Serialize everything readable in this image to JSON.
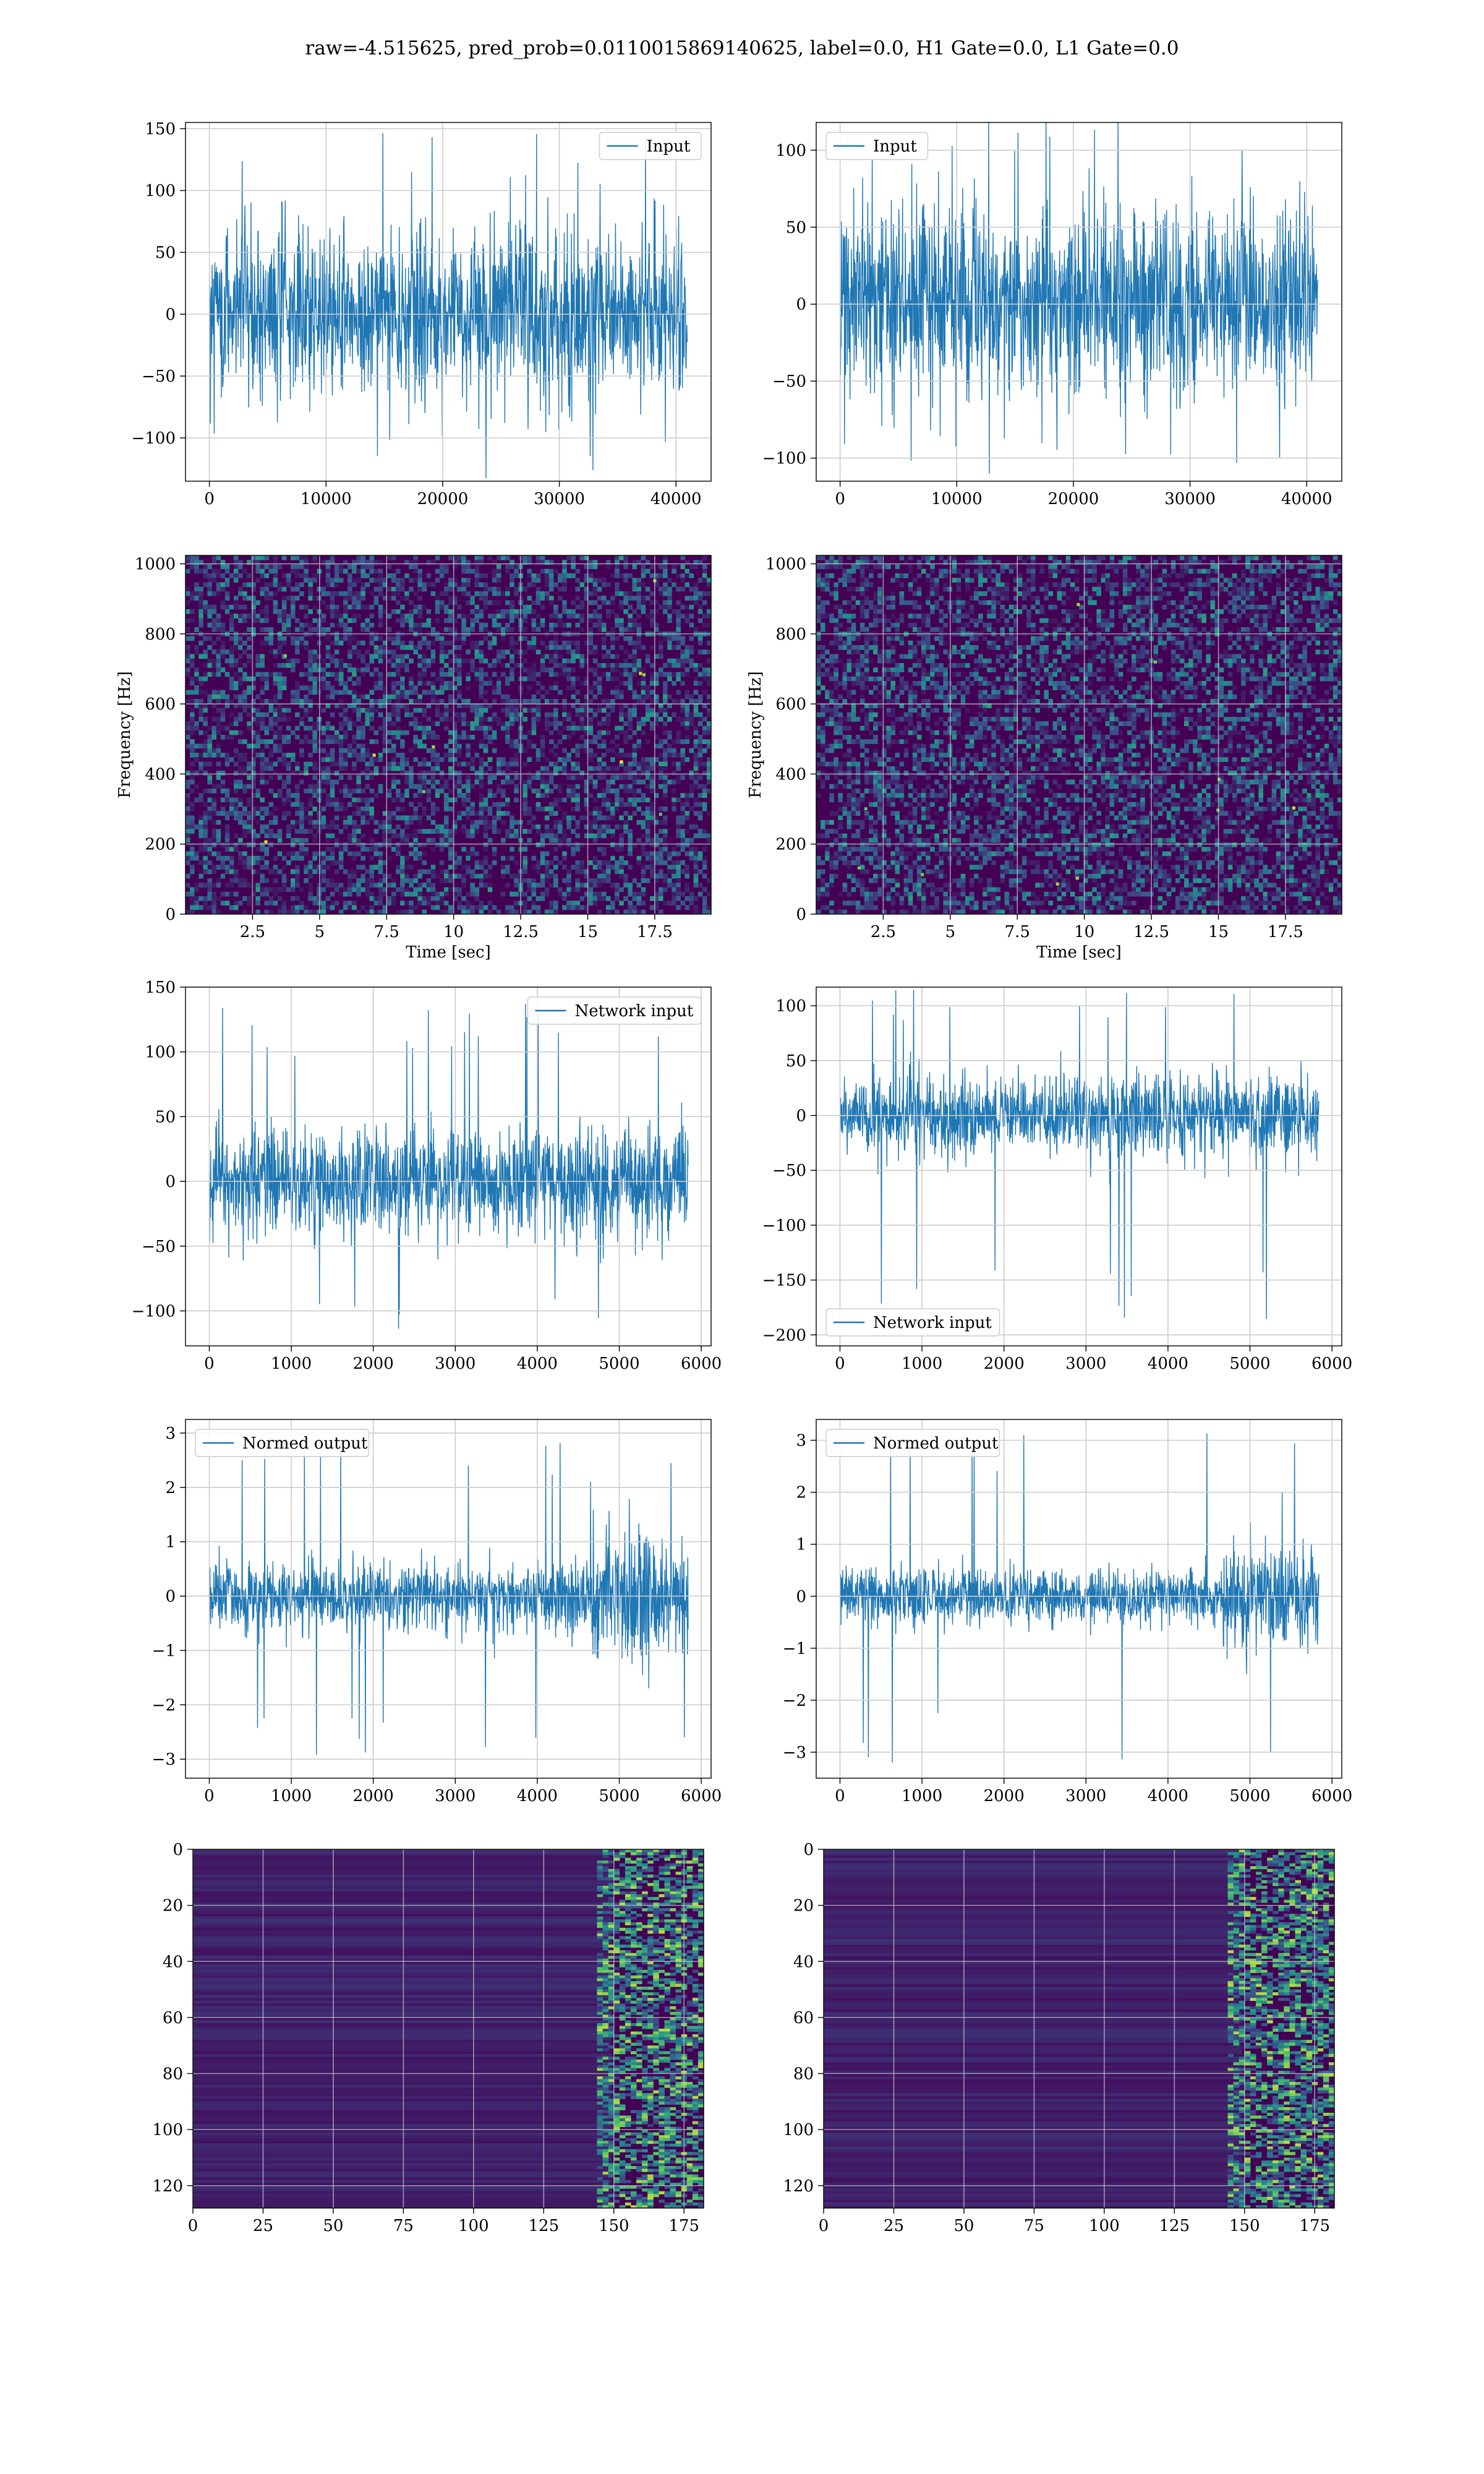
{
  "title": "raw=-4.515625, pred_prob=0.0110015869140625, label=0.0, H1 Gate=0.0, L1 Gate=0.0",
  "colors": {
    "line": "#1f77b4",
    "grid": "#cccccc",
    "viridis_dark": "#440154",
    "viridis_mid": "#21918c",
    "viridis_bright": "#fde725"
  },
  "chart_data": [
    {
      "type": "line",
      "row": 0,
      "col": 0,
      "legend": "Input",
      "legend_loc": "upper right",
      "xlim": [
        -2048,
        43008
      ],
      "ylim": [
        -135,
        155
      ],
      "xticks": [
        0,
        10000,
        20000,
        30000,
        40000
      ],
      "yticks": [
        -100,
        -50,
        0,
        50,
        100,
        150
      ],
      "n_samples": 40960,
      "envelope": [
        -75,
        75
      ],
      "peaks": [
        -133,
        147
      ],
      "grid": true
    },
    {
      "type": "line",
      "row": 0,
      "col": 1,
      "legend": "Input",
      "legend_loc": "upper left",
      "xlim": [
        -2048,
        43008
      ],
      "ylim": [
        -115,
        118
      ],
      "xticks": [
        0,
        10000,
        20000,
        30000,
        40000
      ],
      "yticks": [
        -100,
        -50,
        0,
        50,
        100
      ],
      "n_samples": 40960,
      "envelope": [
        -65,
        70
      ],
      "peaks": [
        -112,
        130
      ],
      "grid": true
    },
    {
      "type": "heatmap",
      "row": 1,
      "col": 0,
      "xlabel": "Time [sec]",
      "ylabel": "Frequency [Hz]",
      "xlim": [
        0,
        19.6
      ],
      "ylim": [
        0,
        1024
      ],
      "xticks": [
        2.5,
        5.0,
        7.5,
        10.0,
        12.5,
        15.0,
        17.5
      ],
      "yticks": [
        0,
        200,
        400,
        600,
        800,
        1000
      ],
      "colormap": "viridis",
      "grid": true
    },
    {
      "type": "heatmap",
      "row": 1,
      "col": 1,
      "xlabel": "Time [sec]",
      "ylabel": "Frequency [Hz]",
      "xlim": [
        0,
        19.6
      ],
      "ylim": [
        0,
        1024
      ],
      "xticks": [
        2.5,
        5.0,
        7.5,
        10.0,
        12.5,
        15.0,
        17.5
      ],
      "yticks": [
        0,
        200,
        400,
        600,
        800,
        1000
      ],
      "colormap": "viridis",
      "grid": true
    },
    {
      "type": "line",
      "row": 2,
      "col": 0,
      "legend": "Network input",
      "legend_loc": "upper right",
      "xlim": [
        -290,
        6120
      ],
      "ylim": [
        -127,
        150
      ],
      "xticks": [
        0,
        1000,
        2000,
        3000,
        4000,
        5000,
        6000
      ],
      "yticks": [
        -100,
        -50,
        0,
        50,
        100,
        150
      ],
      "n_samples": 5840,
      "envelope": [
        -45,
        45
      ],
      "peaks": [
        -115,
        138
      ],
      "grid": true
    },
    {
      "type": "line",
      "row": 2,
      "col": 1,
      "legend": "Network input",
      "legend_loc": "lower left",
      "xlim": [
        -290,
        6120
      ],
      "ylim": [
        -210,
        117
      ],
      "xticks": [
        0,
        1000,
        2000,
        3000,
        4000,
        5000,
        6000
      ],
      "yticks": [
        -200,
        -150,
        -100,
        -50,
        0,
        50,
        100
      ],
      "n_samples": 5840,
      "envelope": [
        -40,
        40
      ],
      "peaks": [
        -193,
        115
      ],
      "grid": true
    },
    {
      "type": "line",
      "row": 3,
      "col": 0,
      "legend": "Normed output",
      "legend_loc": "upper left",
      "xlim": [
        -290,
        6120
      ],
      "ylim": [
        -3.35,
        3.25
      ],
      "xticks": [
        0,
        1000,
        2000,
        3000,
        4000,
        5000,
        6000
      ],
      "yticks": [
        -3,
        -2,
        -1,
        0,
        1,
        2,
        3
      ],
      "n_samples": 5840,
      "envelope": [
        -0.7,
        0.7
      ],
      "peaks": [
        -3.1,
        3.0
      ],
      "grid": true
    },
    {
      "type": "line",
      "row": 3,
      "col": 1,
      "legend": "Normed output",
      "legend_loc": "upper left",
      "xlim": [
        -290,
        6120
      ],
      "ylim": [
        -3.5,
        3.4
      ],
      "xticks": [
        0,
        1000,
        2000,
        3000,
        4000,
        5000,
        6000
      ],
      "yticks": [
        -3,
        -2,
        -1,
        0,
        1,
        2,
        3
      ],
      "n_samples": 5840,
      "envelope": [
        -0.6,
        0.6
      ],
      "peaks": [
        -3.2,
        3.3
      ],
      "grid": true
    },
    {
      "type": "heatmap",
      "row": 4,
      "col": 0,
      "xlim": [
        0,
        182
      ],
      "ylim": [
        128,
        0
      ],
      "xticks": [
        0,
        25,
        50,
        75,
        100,
        125,
        150,
        175
      ],
      "yticks": [
        0,
        20,
        40,
        60,
        80,
        100,
        120
      ],
      "colormap": "viridis",
      "grid": true
    },
    {
      "type": "heatmap",
      "row": 4,
      "col": 1,
      "xlim": [
        0,
        182
      ],
      "ylim": [
        128,
        0
      ],
      "xticks": [
        0,
        25,
        50,
        75,
        100,
        125,
        150,
        175
      ],
      "yticks": [
        0,
        20,
        40,
        60,
        80,
        100,
        120
      ],
      "colormap": "viridis",
      "grid": true
    }
  ]
}
